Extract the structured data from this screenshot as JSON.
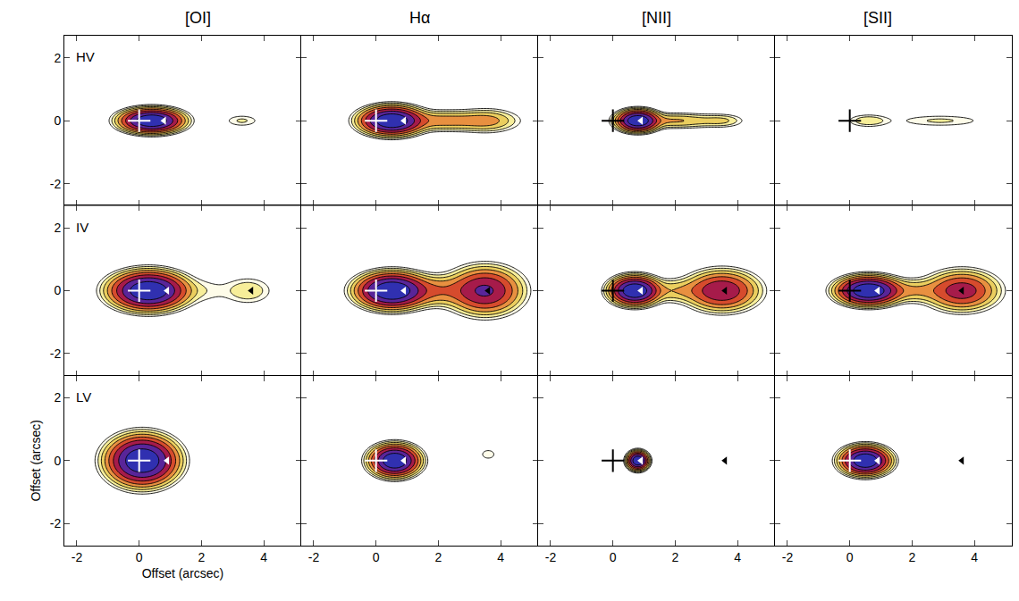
{
  "chart_data": {
    "type": "contour",
    "log": true,
    "columns": [
      "[OI]",
      "Hα",
      "[NII]",
      "[SII]"
    ],
    "rows": [
      "HV",
      "IV",
      "LV"
    ],
    "x_title": "Offset (arcsec)",
    "y_title": "Offset (arcsec)",
    "xlim": [
      -2.4,
      5.2
    ],
    "ylim": [
      -2.7,
      2.7
    ],
    "xticks": [
      -2,
      0,
      2,
      4
    ],
    "yticks": [
      -2,
      0,
      2
    ],
    "contour_levels": [
      0.01,
      0.0178,
      0.0316,
      0.0562,
      0.1,
      0.178,
      0.316,
      0.562,
      1
    ],
    "colors": [
      "#ffffff",
      "#fdfbe0",
      "#f8f0a0",
      "#f0e070",
      "#e8c050",
      "#e89040",
      "#e06030",
      "#c83028",
      "#a01850",
      "#6a2090",
      "#3030b0"
    ],
    "panels": [
      {
        "row": "HV",
        "column": "[OI]",
        "knots": [
          {
            "x": 0.4,
            "y": 0,
            "peak": 1,
            "sx": 0.45,
            "sy": 0.17
          },
          {
            "x": 3.3,
            "y": 0,
            "peak": 0.02,
            "sx": 0.35,
            "sy": 0.12
          }
        ],
        "source": {
          "x": 0,
          "y": 0,
          "color": "white"
        },
        "markers": [
          {
            "x": 0.8,
            "y": 0,
            "color": "white"
          }
        ]
      },
      {
        "row": "HV",
        "column": "Hα",
        "knots": [
          {
            "x": 0.5,
            "y": 0,
            "peak": 1,
            "sx": 0.45,
            "sy": 0.2
          },
          {
            "x": 2.2,
            "y": 0,
            "peak": 0.08,
            "sx": 1.0,
            "sy": 0.17
          },
          {
            "x": 3.6,
            "y": 0,
            "peak": 0.05,
            "sx": 0.5,
            "sy": 0.2
          }
        ],
        "source": {
          "x": 0,
          "y": 0,
          "color": "white"
        },
        "markers": [
          {
            "x": 0.9,
            "y": 0,
            "color": "white"
          }
        ]
      },
      {
        "row": "HV",
        "column": "[NII]",
        "knots": [
          {
            "x": 0.8,
            "y": 0,
            "peak": 1,
            "sx": 0.3,
            "sy": 0.15
          },
          {
            "x": 2.0,
            "y": 0,
            "peak": 0.06,
            "sx": 0.8,
            "sy": 0.13
          },
          {
            "x": 3.5,
            "y": 0,
            "peak": 0.03,
            "sx": 0.4,
            "sy": 0.12
          }
        ],
        "source": {
          "x": 0,
          "y": 0,
          "color": "black"
        },
        "markers": [
          {
            "x": 0.9,
            "y": 0,
            "color": "white"
          }
        ]
      },
      {
        "row": "HV",
        "column": "[SII]",
        "knots": [
          {
            "x": 0.6,
            "y": 0,
            "peak": 0.03,
            "sx": 0.4,
            "sy": 0.12
          },
          {
            "x": 2.9,
            "y": 0,
            "peak": 0.02,
            "sx": 0.9,
            "sy": 0.12
          }
        ],
        "source": {
          "x": 0,
          "y": 0,
          "color": "black"
        },
        "markers": []
      },
      {
        "row": "IV",
        "column": "[OI]",
        "knots": [
          {
            "x": 0.3,
            "y": 0,
            "peak": 1,
            "sx": 0.55,
            "sy": 0.27
          },
          {
            "x": 2.0,
            "y": 0,
            "peak": 0.015,
            "sx": 0.6,
            "sy": 0.25
          },
          {
            "x": 3.5,
            "y": 0,
            "peak": 0.03,
            "sx": 0.45,
            "sy": 0.25
          }
        ],
        "source": {
          "x": 0,
          "y": 0,
          "color": "white"
        },
        "markers": [
          {
            "x": 0.9,
            "y": 0,
            "color": "white"
          },
          {
            "x": 3.6,
            "y": 0,
            "color": "black"
          }
        ]
      },
      {
        "row": "IV",
        "column": "Hα",
        "knots": [
          {
            "x": 0.5,
            "y": 0,
            "peak": 1,
            "sx": 0.5,
            "sy": 0.25
          },
          {
            "x": 1.8,
            "y": 0,
            "peak": 0.1,
            "sx": 0.8,
            "sy": 0.25
          },
          {
            "x": 3.5,
            "y": 0,
            "peak": 0.35,
            "sx": 0.55,
            "sy": 0.35
          }
        ],
        "source": {
          "x": 0,
          "y": 0,
          "color": "white"
        },
        "markers": [
          {
            "x": 0.9,
            "y": 0,
            "color": "white"
          },
          {
            "x": 3.6,
            "y": 0,
            "color": "black"
          }
        ]
      },
      {
        "row": "IV",
        "column": "[NII]",
        "knots": [
          {
            "x": 0.7,
            "y": 0,
            "peak": 1,
            "sx": 0.35,
            "sy": 0.2
          },
          {
            "x": 2.0,
            "y": 0,
            "peak": 0.05,
            "sx": 0.7,
            "sy": 0.2
          },
          {
            "x": 3.5,
            "y": 0,
            "peak": 0.3,
            "sx": 0.55,
            "sy": 0.3
          }
        ],
        "source": {
          "x": 0,
          "y": 0,
          "color": "black"
        },
        "markers": [
          {
            "x": 0.9,
            "y": 0,
            "color": "white"
          },
          {
            "x": 3.6,
            "y": 0,
            "color": "black"
          }
        ]
      },
      {
        "row": "IV",
        "column": "[SII]",
        "knots": [
          {
            "x": 0.6,
            "y": 0,
            "peak": 1,
            "sx": 0.45,
            "sy": 0.2
          },
          {
            "x": 2.0,
            "y": 0,
            "peak": 0.06,
            "sx": 0.7,
            "sy": 0.2
          },
          {
            "x": 3.6,
            "y": 0,
            "peak": 0.25,
            "sx": 0.55,
            "sy": 0.3
          }
        ],
        "source": {
          "x": 0,
          "y": 0,
          "color": "black"
        },
        "markers": [
          {
            "x": 0.9,
            "y": 0,
            "color": "white"
          },
          {
            "x": 3.6,
            "y": 0,
            "color": "black"
          }
        ]
      },
      {
        "row": "LV",
        "column": "[OI]",
        "knots": [
          {
            "x": 0.1,
            "y": 0,
            "peak": 1,
            "sx": 0.5,
            "sy": 0.35
          }
        ],
        "source": {
          "x": 0,
          "y": 0,
          "color": "white"
        },
        "markers": [
          {
            "x": 0.9,
            "y": 0,
            "color": "white"
          }
        ]
      },
      {
        "row": "LV",
        "column": "Hα",
        "knots": [
          {
            "x": 0.6,
            "y": 0,
            "peak": 1,
            "sx": 0.35,
            "sy": 0.22
          },
          {
            "x": 3.6,
            "y": 0.2,
            "peak": 0.012,
            "sx": 0.3,
            "sy": 0.2
          }
        ],
        "source": {
          "x": 0,
          "y": 0,
          "color": "white"
        },
        "markers": [
          {
            "x": 0.9,
            "y": 0,
            "color": "white"
          }
        ]
      },
      {
        "row": "LV",
        "column": "[NII]",
        "knots": [
          {
            "x": 0.8,
            "y": 0,
            "peak": 1,
            "sx": 0.15,
            "sy": 0.13
          }
        ],
        "source": {
          "x": 0,
          "y": 0,
          "color": "black"
        },
        "markers": [
          {
            "x": 0.9,
            "y": 0,
            "color": "white"
          },
          {
            "x": 3.6,
            "y": 0,
            "color": "black"
          }
        ]
      },
      {
        "row": "LV",
        "column": "[SII]",
        "knots": [
          {
            "x": 0.5,
            "y": 0,
            "peak": 1,
            "sx": 0.35,
            "sy": 0.2
          }
        ],
        "source": {
          "x": 0,
          "y": 0,
          "color": "white"
        },
        "markers": [
          {
            "x": 0.9,
            "y": 0,
            "color": "white"
          },
          {
            "x": 3.6,
            "y": 0,
            "color": "black"
          }
        ]
      }
    ]
  }
}
